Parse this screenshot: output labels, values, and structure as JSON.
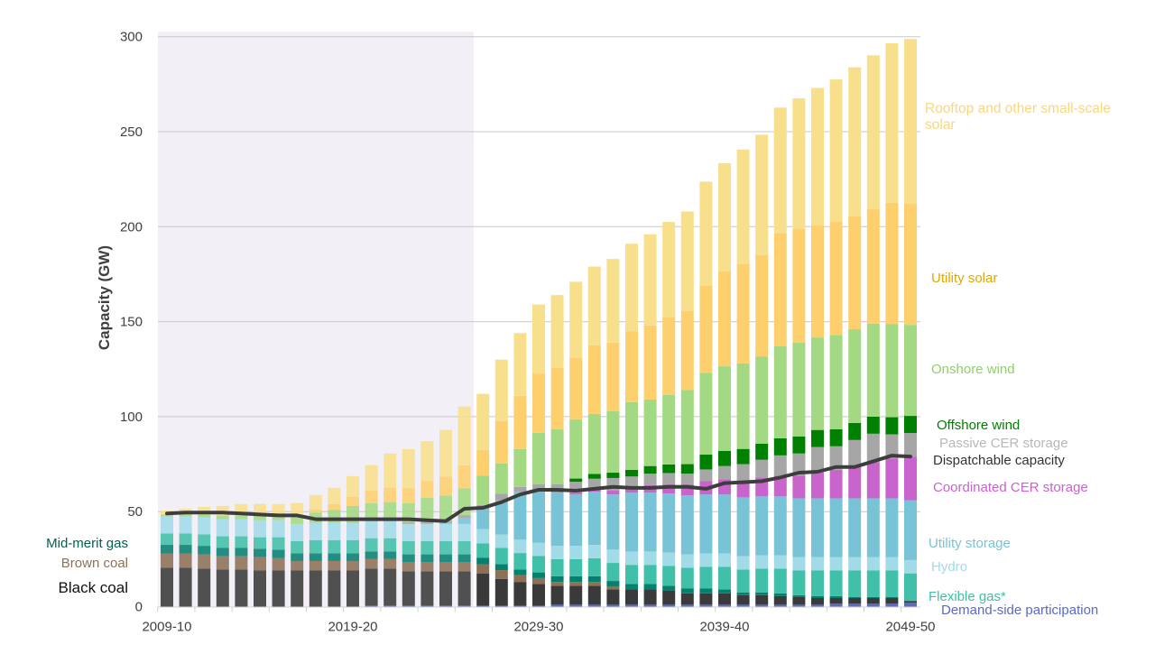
{
  "chart_data": {
    "type": "bar",
    "stacked": true,
    "ylabel": "Capacity (GW)",
    "ylim": [
      0,
      300
    ],
    "yticks": [
      "0",
      "50",
      "100",
      "150",
      "200",
      "250",
      "300"
    ],
    "grid": true,
    "xtick_labels": [
      "2009-10",
      "2019-20",
      "2029-30",
      "2039-40",
      "2049-50"
    ],
    "shaded_region": [
      "2009-10",
      "2025-26"
    ],
    "categories": [
      "2009-10",
      "2010-11",
      "2011-12",
      "2012-13",
      "2013-14",
      "2014-15",
      "2015-16",
      "2016-17",
      "2017-18",
      "2018-19",
      "2019-20",
      "2020-21",
      "2021-22",
      "2022-23",
      "2023-24",
      "2024-25",
      "2025-26",
      "2026-27",
      "2027-28",
      "2028-29",
      "2029-30",
      "2030-31",
      "2031-32",
      "2032-33",
      "2033-34",
      "2034-35",
      "2035-36",
      "2036-37",
      "2037-38",
      "2038-39",
      "2039-40",
      "2040-41",
      "2041-42",
      "2042-43",
      "2043-44",
      "2044-45",
      "2045-46",
      "2046-47",
      "2047-48",
      "2048-49",
      "2049-50"
    ],
    "series": [
      {
        "name": "Demand-side participation",
        "color": "#5b6bbf",
        "values": [
          0,
          0,
          0,
          0,
          0,
          0,
          0,
          0,
          0,
          0,
          0,
          0.5,
          0.5,
          0.5,
          0.5,
          0.5,
          0.5,
          0.5,
          0.5,
          0.5,
          0.5,
          1,
          1,
          1,
          1,
          1,
          1,
          1,
          1,
          1,
          1,
          1,
          1,
          1,
          1,
          1,
          1.5,
          1.5,
          1.5,
          1.5,
          2
        ]
      },
      {
        "name": "Black coal",
        "color": "#3a3a3a",
        "values": [
          20.5,
          20.5,
          20,
          19.5,
          19.5,
          19,
          19,
          19,
          19,
          19,
          19,
          19.5,
          19.5,
          18,
          18,
          18,
          18,
          17,
          14,
          12.5,
          11.5,
          10,
          10,
          10,
          8,
          8,
          8,
          7.5,
          6,
          6,
          6,
          5,
          5,
          4.5,
          4,
          3.5,
          3,
          3,
          3,
          3,
          1
        ]
      },
      {
        "name": "Brown coal",
        "color": "#8c7156",
        "values": [
          7.5,
          7.5,
          7.5,
          7,
          7,
          7,
          6.5,
          5,
          5,
          5,
          5,
          5,
          5,
          5,
          5,
          5,
          5,
          4.8,
          4.7,
          3.5,
          3,
          2,
          2,
          2,
          1.5,
          0,
          0,
          0,
          0,
          0,
          0,
          0,
          0,
          0,
          0,
          0,
          0,
          0,
          0,
          0,
          0
        ]
      },
      {
        "name": "Mid-merit gas",
        "color": "#05806f",
        "values": [
          4.5,
          4.5,
          4.5,
          4.5,
          4.5,
          4.5,
          4.5,
          4,
          4,
          4,
          4,
          4,
          4,
          4,
          4,
          4,
          4,
          3.5,
          3.2,
          3,
          3,
          3,
          3,
          3,
          3,
          3,
          3,
          2.5,
          2.5,
          2.5,
          2,
          1.5,
          1.5,
          1.5,
          1,
          1,
          1,
          0.5,
          0.5,
          0.5,
          0
        ]
      },
      {
        "name": "Flexible gas*",
        "color": "#40c0a8",
        "values": [
          6,
          6,
          6,
          6,
          6,
          6,
          6.5,
          6.5,
          7,
          7,
          7,
          7,
          7,
          7,
          7,
          7,
          7,
          7.5,
          8.5,
          8.7,
          8.7,
          9,
          9,
          9.5,
          9.5,
          10,
          10,
          10.5,
          11,
          11.5,
          12,
          12,
          12.5,
          13,
          13,
          13.5,
          13.5,
          14,
          14,
          14,
          14.5
        ]
      },
      {
        "name": "Hydro",
        "color": "#a2dbe8",
        "values": [
          9,
          9,
          9,
          9,
          9,
          9,
          9,
          9,
          9,
          9,
          9,
          9,
          9,
          9,
          9,
          9,
          9,
          7.5,
          7,
          7,
          7,
          7,
          7,
          7,
          7,
          7,
          7,
          7,
          7,
          7,
          7,
          7,
          7,
          7,
          7,
          7,
          7,
          7,
          7,
          7,
          7
        ]
      },
      {
        "name": "Utility storage",
        "color": "#78c4d6",
        "values": [
          0,
          0,
          0,
          0,
          0,
          0,
          0,
          0,
          0,
          0,
          0,
          0,
          0,
          0,
          0,
          0.5,
          3,
          10.5,
          18,
          25,
          27.5,
          28,
          27,
          28,
          29,
          31,
          31,
          31,
          31,
          31,
          31,
          31,
          31,
          31,
          31,
          31,
          31,
          31,
          31,
          31,
          31.5
        ]
      },
      {
        "name": "Coordinated CER storage",
        "color": "#c964cc",
        "values": [
          0,
          0,
          0,
          0,
          0,
          0,
          0,
          0,
          0,
          0,
          0,
          0,
          0,
          0,
          0,
          0,
          0,
          0,
          0,
          0,
          0,
          0.5,
          1,
          1.5,
          2,
          3,
          4,
          5,
          6,
          7,
          8,
          9,
          10,
          11,
          12,
          13.5,
          15,
          17,
          19,
          21,
          23
        ]
      },
      {
        "name": "Passive CER storage",
        "color": "#a6a6a6",
        "values": [
          0,
          0,
          0,
          0,
          0,
          0,
          0,
          0,
          0,
          0,
          0.3,
          0.5,
          0.7,
          1,
          1.2,
          1.5,
          1.8,
          2.2,
          3.5,
          2.8,
          3.3,
          4,
          5.7,
          5.3,
          6.7,
          5.5,
          6,
          5.8,
          5.5,
          6.2,
          7,
          8.5,
          9.3,
          10.6,
          11.6,
          13.5,
          12.4,
          13.7,
          15,
          12.7,
          12.4
        ]
      },
      {
        "name": "Offshore wind",
        "color": "#008000",
        "values": [
          0,
          0,
          0,
          0,
          0,
          0,
          0,
          0,
          0,
          0,
          0,
          0,
          0,
          0,
          0,
          0,
          0,
          0,
          0,
          0,
          0,
          0,
          1.7,
          2.5,
          2.8,
          3.5,
          4,
          4.5,
          5,
          7.8,
          8,
          8,
          8.5,
          9,
          9,
          9,
          9,
          9,
          9,
          9,
          9
        ]
      },
      {
        "name": "Onshore wind",
        "color": "#a2d982",
        "values": [
          1,
          1.5,
          1.5,
          2,
          2,
          2.5,
          3,
          4,
          5.5,
          7,
          8.7,
          9,
          9.3,
          10,
          12.6,
          13,
          14,
          15.5,
          16,
          20,
          27,
          28.9,
          31.2,
          31.6,
          32.3,
          35.6,
          35,
          36.7,
          39,
          43,
          44.5,
          45,
          45.9,
          48.4,
          49.4,
          48.7,
          49.6,
          49.3,
          49,
          49.1,
          47.9
        ]
      },
      {
        "name": "Utility solar",
        "color": "#fdd06d",
        "values": [
          0,
          0,
          0,
          0,
          0,
          0,
          0,
          0,
          1.7,
          3,
          4.7,
          6.5,
          7.6,
          7.9,
          8.8,
          10,
          12,
          13.5,
          22.3,
          28,
          31.2,
          32.2,
          32.4,
          36.1,
          36.2,
          37.4,
          39,
          41,
          41.7,
          46,
          49.9,
          52.2,
          53.3,
          59.7,
          59.7,
          58.9,
          59.5,
          59.4,
          60.3,
          63.7,
          63.7
        ]
      },
      {
        "name": "Rooftop and other small-scale solar",
        "color": "#f8df8c",
        "values": [
          2,
          2.5,
          4,
          5,
          6,
          6,
          5.5,
          7,
          7.5,
          8.5,
          11,
          13.5,
          18,
          20.5,
          21,
          24.5,
          31,
          29.5,
          32.3,
          33,
          36.3,
          38.4,
          40,
          41.5,
          44,
          46,
          48,
          50,
          52.3,
          54.7,
          57,
          60.4,
          63.4,
          66,
          68.9,
          72.4,
          75,
          78.5,
          80.9,
          84,
          86.8
        ]
      }
    ],
    "line": {
      "name": "Dispatchable capacity",
      "color": "#3d3d3d",
      "values": [
        49,
        49.5,
        49.5,
        49.5,
        49,
        48.5,
        48,
        48,
        46,
        46,
        46,
        46,
        46,
        46,
        45.5,
        45,
        51.5,
        52,
        55,
        59,
        61.5,
        61.5,
        61,
        62,
        63,
        62.5,
        62.5,
        63,
        63,
        62,
        65,
        65.5,
        66,
        68,
        70.5,
        71,
        73.5,
        73.5,
        76.5,
        79.5,
        79
      ]
    },
    "labels": {
      "rooftop": "Rooftop and other small-scale",
      "rooftop_2": "solar",
      "utility_solar": "Utility solar",
      "onshore": "Onshore wind",
      "offshore": "Offshore wind",
      "passive": "Passive  CER storage",
      "dispatchable": "Dispatchable capacity",
      "coordinated": "Coordinated CER storage",
      "utility_storage": "Utility storage",
      "hydro": "Hydro",
      "flexible_gas": "Flexible gas*",
      "dsp": "Demand-side participation",
      "mid_merit": "Mid-merit gas",
      "brown_coal": "Brown coal",
      "black_coal": "Black coal"
    }
  }
}
